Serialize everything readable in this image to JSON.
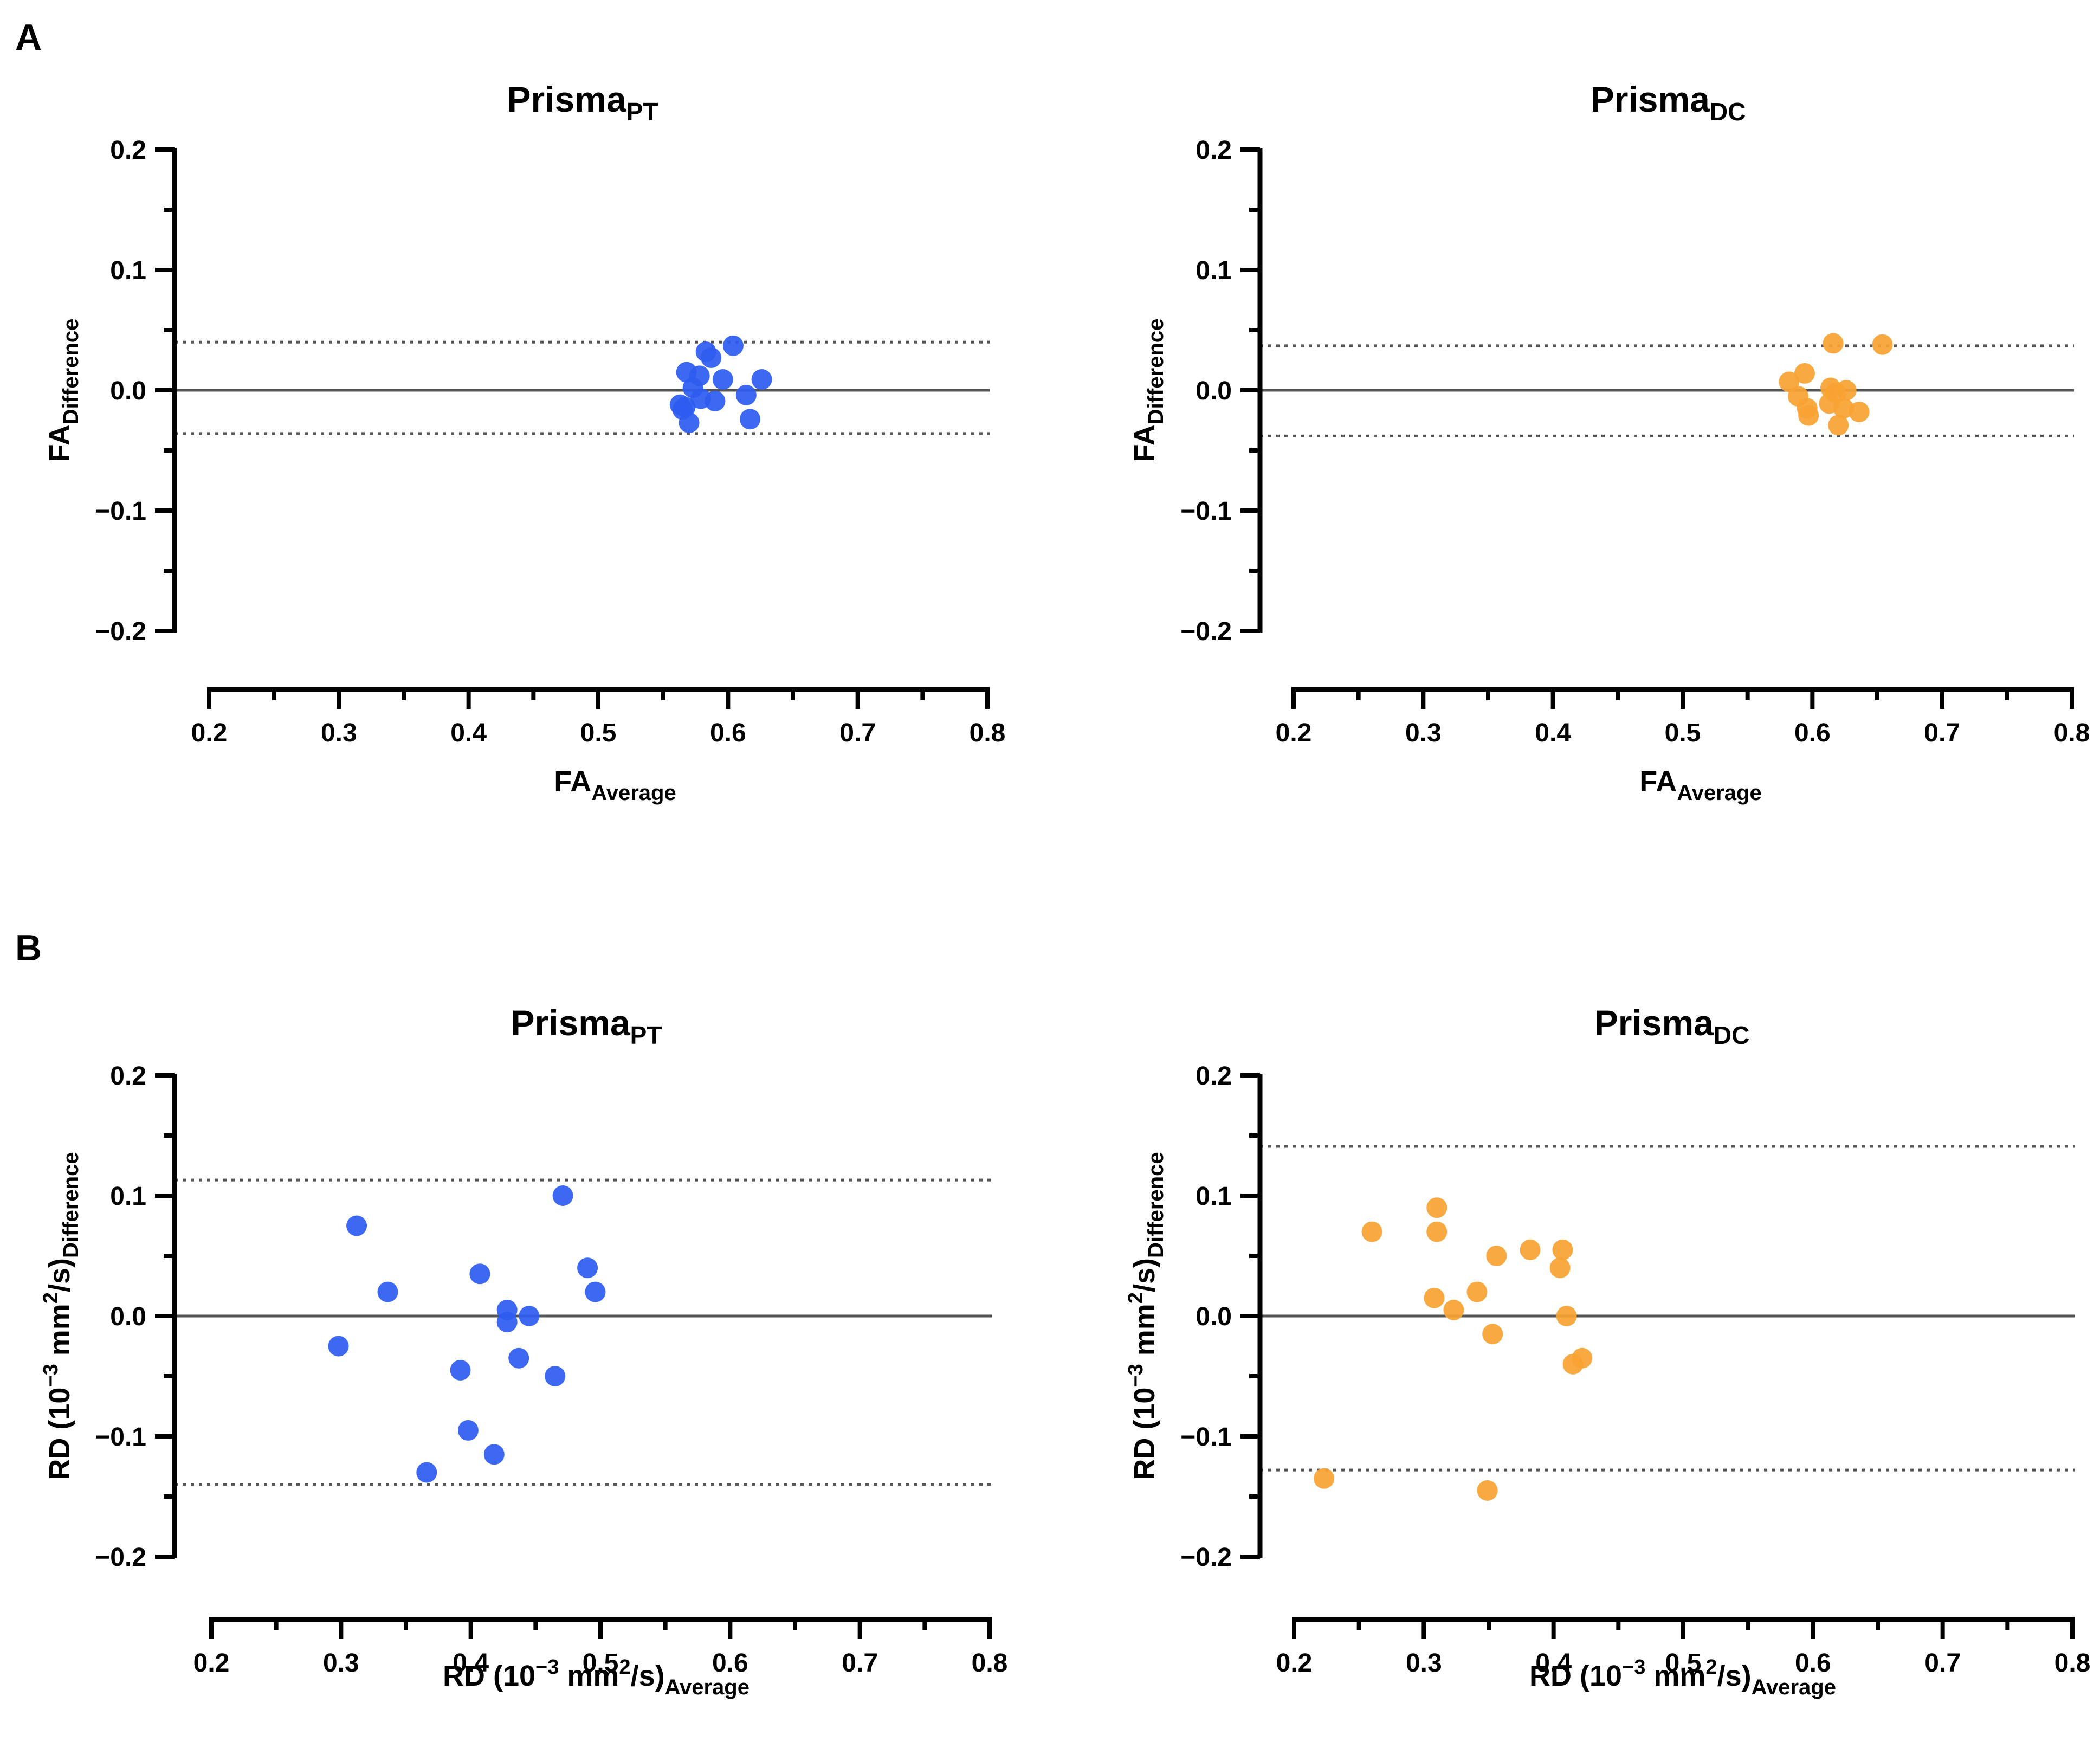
{
  "panel_labels": [
    "A",
    "B"
  ],
  "chart_data": [
    {
      "type": "scatter",
      "panel": "A",
      "title_main": "Prisma",
      "title_sub": "PT",
      "xlabel_main": "FA",
      "xlabel_sub": "Average",
      "ylabel_main": "FA",
      "ylabel_sub": "Difference",
      "xlim": [
        0.2,
        0.8
      ],
      "ylim": [
        -0.2,
        0.2
      ],
      "xticks": [
        "0.2",
        "0.3",
        "0.4",
        "0.5",
        "0.6",
        "0.7",
        "0.8"
      ],
      "yticks": [
        "−0.2",
        "−0.1",
        "0.0",
        "0.1",
        "0.2"
      ],
      "color": "#2E5CF0",
      "mean_line": 0.0,
      "loa_upper": 0.04,
      "loa_lower": -0.036,
      "points": [
        [
          0.604,
          0.037
        ],
        [
          0.583,
          0.032
        ],
        [
          0.587,
          0.027
        ],
        [
          0.568,
          0.015
        ],
        [
          0.578,
          0.012
        ],
        [
          0.596,
          0.009
        ],
        [
          0.626,
          0.009
        ],
        [
          0.573,
          0.002
        ],
        [
          0.614,
          -0.004
        ],
        [
          0.579,
          -0.007
        ],
        [
          0.59,
          -0.009
        ],
        [
          0.563,
          -0.012
        ],
        [
          0.567,
          -0.014
        ],
        [
          0.565,
          -0.016
        ],
        [
          0.617,
          -0.024
        ],
        [
          0.57,
          -0.027
        ]
      ]
    },
    {
      "type": "scatter",
      "panel": "A",
      "title_main": "Prisma",
      "title_sub": "DC",
      "xlabel_main": "FA",
      "xlabel_sub": "Average",
      "ylabel_main": "FA",
      "ylabel_sub": "Difference",
      "xlim": [
        0.2,
        0.8
      ],
      "ylim": [
        -0.2,
        0.2
      ],
      "xticks": [
        "0.2",
        "0.3",
        "0.4",
        "0.5",
        "0.6",
        "0.7",
        "0.8"
      ],
      "yticks": [
        "−0.2",
        "−0.1",
        "0.0",
        "0.1",
        "0.2"
      ],
      "color": "#F7A233",
      "mean_line": 0.0,
      "loa_upper": 0.037,
      "loa_lower": -0.038,
      "points": [
        [
          0.616,
          0.039
        ],
        [
          0.654,
          0.038
        ],
        [
          0.594,
          0.014
        ],
        [
          0.582,
          0.007
        ],
        [
          0.614,
          0.002
        ],
        [
          0.626,
          0.0
        ],
        [
          0.618,
          -0.002
        ],
        [
          0.589,
          -0.005
        ],
        [
          0.613,
          -0.011
        ],
        [
          0.624,
          -0.015
        ],
        [
          0.596,
          -0.015
        ],
        [
          0.636,
          -0.018
        ],
        [
          0.597,
          -0.021
        ],
        [
          0.62,
          -0.029
        ]
      ]
    },
    {
      "type": "scatter",
      "panel": "B",
      "title_main": "Prisma",
      "title_sub": "PT",
      "xlabel_main": "RD (10",
      "xlabel_exp": "−3",
      "xlabel_mid": " mm",
      "xlabel_exp2": "2",
      "xlabel_end": "/s)",
      "xlabel_sub": "Average",
      "ylabel_main": "RD (10",
      "ylabel_exp": "−3",
      "ylabel_mid": " mm",
      "ylabel_exp2": "2",
      "ylabel_end": "/s)",
      "ylabel_sub": "Difference",
      "xlim": [
        0.2,
        0.8
      ],
      "ylim": [
        -0.2,
        0.2
      ],
      "xticks": [
        "0.2",
        "0.3",
        "0.4",
        "0.5",
        "0.6",
        "0.7",
        "0.8"
      ],
      "yticks": [
        "−0.2",
        "−0.1",
        "0.0",
        "0.1",
        "0.2"
      ],
      "color": "#2E5CF0",
      "mean_line": 0.0,
      "loa_upper": 0.113,
      "loa_lower": -0.14,
      "points": [
        [
          0.471,
          0.1
        ],
        [
          0.312,
          0.075
        ],
        [
          0.49,
          0.04
        ],
        [
          0.407,
          0.035
        ],
        [
          0.336,
          0.02
        ],
        [
          0.496,
          0.02
        ],
        [
          0.428,
          0.005
        ],
        [
          0.445,
          0.0
        ],
        [
          0.428,
          -0.005
        ],
        [
          0.298,
          -0.025
        ],
        [
          0.437,
          -0.035
        ],
        [
          0.392,
          -0.045
        ],
        [
          0.465,
          -0.05
        ],
        [
          0.398,
          -0.095
        ],
        [
          0.418,
          -0.115
        ],
        [
          0.366,
          -0.13
        ]
      ]
    },
    {
      "type": "scatter",
      "panel": "B",
      "title_main": "Prisma",
      "title_sub": "DC",
      "xlabel_main": "RD (10",
      "xlabel_exp": "−3",
      "xlabel_mid": " mm",
      "xlabel_exp2": "2",
      "xlabel_end": "/s)",
      "xlabel_sub": "Average",
      "ylabel_main": "RD (10",
      "ylabel_exp": "−3",
      "ylabel_mid": " mm",
      "ylabel_exp2": "2",
      "ylabel_end": "/s)",
      "ylabel_sub": "Difference",
      "xlim": [
        0.2,
        0.8
      ],
      "ylim": [
        -0.2,
        0.2
      ],
      "xticks": [
        "0.2",
        "0.3",
        "0.4",
        "0.5",
        "0.6",
        "0.7",
        "0.8"
      ],
      "yticks": [
        "−0.2",
        "−0.1",
        "0.0",
        "0.1",
        "0.2"
      ],
      "color": "#F7A233",
      "mean_line": 0.0,
      "loa_upper": 0.141,
      "loa_lower": -0.128,
      "points": [
        [
          0.31,
          0.09
        ],
        [
          0.26,
          0.07
        ],
        [
          0.31,
          0.07
        ],
        [
          0.382,
          0.055
        ],
        [
          0.407,
          0.055
        ],
        [
          0.356,
          0.05
        ],
        [
          0.405,
          0.04
        ],
        [
          0.341,
          0.02
        ],
        [
          0.308,
          0.015
        ],
        [
          0.323,
          0.005
        ],
        [
          0.41,
          0.0
        ],
        [
          0.353,
          -0.015
        ],
        [
          0.422,
          -0.035
        ],
        [
          0.415,
          -0.04
        ],
        [
          0.223,
          -0.135
        ],
        [
          0.349,
          -0.145
        ]
      ]
    }
  ]
}
